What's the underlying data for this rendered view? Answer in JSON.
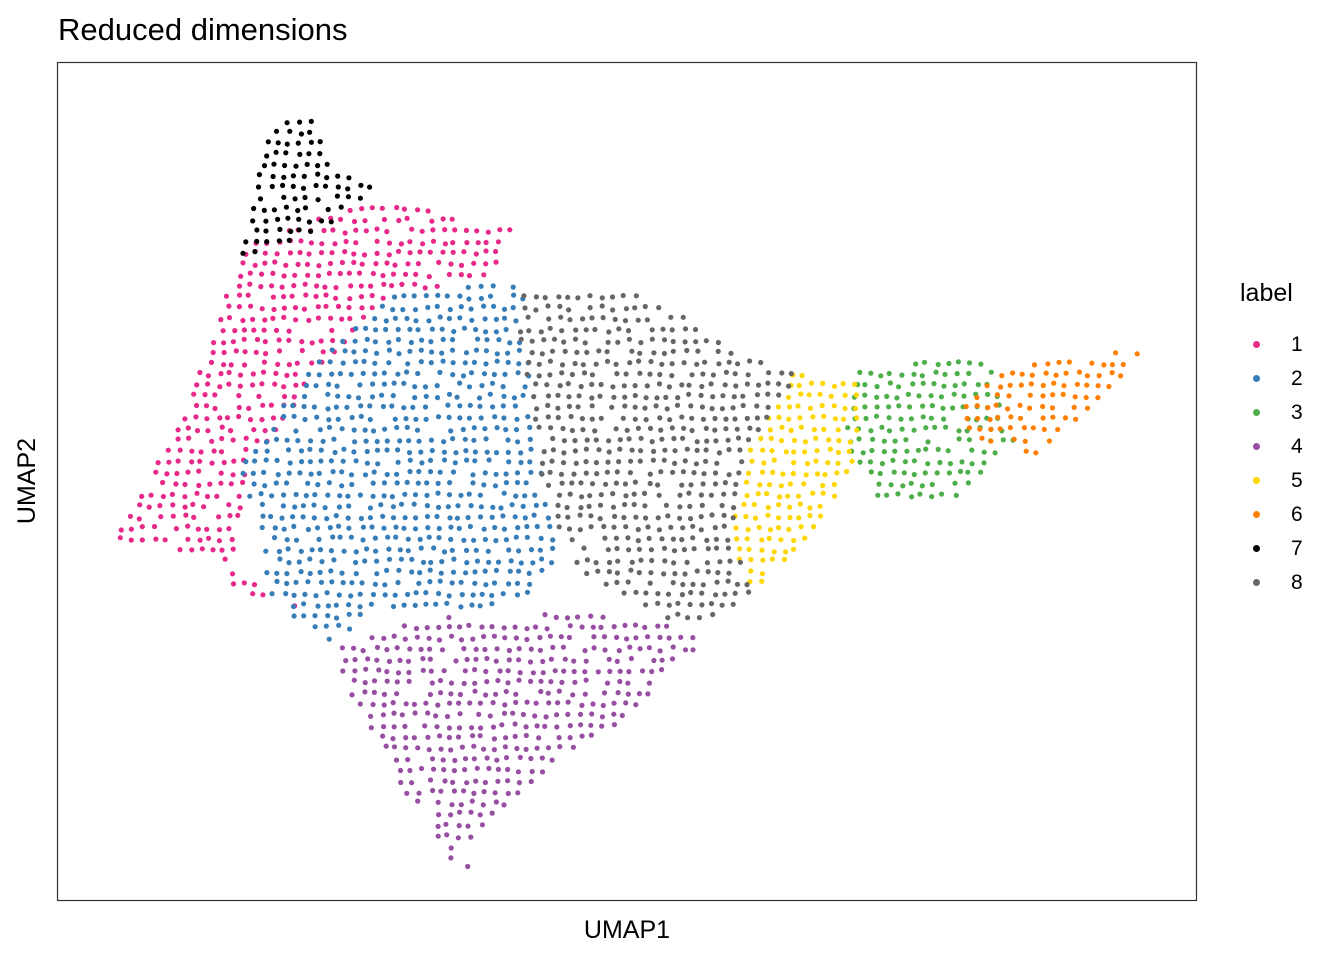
{
  "chart_data": {
    "type": "scatter",
    "title": "Reduced dimensions",
    "xlabel": "UMAP1",
    "ylabel": "UMAP2",
    "xlim": [
      0,
      1
    ],
    "ylim": [
      0,
      1
    ],
    "axis_ticks": false,
    "grid": false,
    "legend": {
      "title": "label",
      "position": "right"
    },
    "series": [
      {
        "name": "1",
        "color": "#e7298a",
        "outline": [
          [
            0.05,
            0.43
          ],
          [
            0.11,
            0.58
          ],
          [
            0.16,
            0.78
          ],
          [
            0.28,
            0.84
          ],
          [
            0.4,
            0.8
          ],
          [
            0.39,
            0.75
          ],
          [
            0.29,
            0.72
          ],
          [
            0.24,
            0.65
          ],
          [
            0.17,
            0.52
          ],
          [
            0.15,
            0.37
          ],
          [
            0.21,
            0.35
          ],
          [
            0.13,
            0.41
          ]
        ]
      },
      {
        "name": "2",
        "color": "#377eb8",
        "outline": [
          [
            0.16,
            0.52
          ],
          [
            0.23,
            0.65
          ],
          [
            0.29,
            0.72
          ],
          [
            0.39,
            0.74
          ],
          [
            0.41,
            0.73
          ],
          [
            0.42,
            0.55
          ],
          [
            0.44,
            0.4
          ],
          [
            0.39,
            0.34
          ],
          [
            0.29,
            0.35
          ],
          [
            0.24,
            0.31
          ],
          [
            0.19,
            0.35
          ]
        ]
      },
      {
        "name": "3",
        "color": "#4daf4a",
        "outline": [
          [
            0.7,
            0.64
          ],
          [
            0.74,
            0.64
          ],
          [
            0.78,
            0.65
          ],
          [
            0.82,
            0.64
          ],
          [
            0.84,
            0.55
          ],
          [
            0.79,
            0.48
          ],
          [
            0.75,
            0.48
          ],
          [
            0.72,
            0.48
          ],
          [
            0.69,
            0.55
          ]
        ]
      },
      {
        "name": "4",
        "color": "#984ea3",
        "outline": [
          [
            0.24,
            0.3
          ],
          [
            0.33,
            0.34
          ],
          [
            0.4,
            0.33
          ],
          [
            0.45,
            0.35
          ],
          [
            0.53,
            0.33
          ],
          [
            0.57,
            0.31
          ],
          [
            0.49,
            0.21
          ],
          [
            0.41,
            0.13
          ],
          [
            0.36,
            0.07
          ],
          [
            0.35,
            0.04
          ],
          [
            0.3,
            0.14
          ],
          [
            0.27,
            0.21
          ]
        ]
      },
      {
        "name": "5",
        "color": "#ffd700",
        "outline": [
          [
            0.6,
            0.52
          ],
          [
            0.63,
            0.59
          ],
          [
            0.64,
            0.63
          ],
          [
            0.7,
            0.62
          ],
          [
            0.71,
            0.57
          ],
          [
            0.69,
            0.49
          ],
          [
            0.65,
            0.42
          ],
          [
            0.61,
            0.37
          ],
          [
            0.59,
            0.43
          ]
        ]
      },
      {
        "name": "6",
        "color": "#ff7f00",
        "outline": [
          [
            0.79,
            0.58
          ],
          [
            0.83,
            0.64
          ],
          [
            0.91,
            0.65
          ],
          [
            0.96,
            0.66
          ],
          [
            0.91,
            0.59
          ],
          [
            0.86,
            0.53
          ],
          [
            0.8,
            0.55
          ]
        ]
      },
      {
        "name": "7",
        "color": "#000000",
        "outline": [
          [
            0.16,
            0.76
          ],
          [
            0.17,
            0.82
          ],
          [
            0.17,
            0.87
          ],
          [
            0.19,
            0.92
          ],
          [
            0.22,
            0.95
          ],
          [
            0.24,
            0.88
          ],
          [
            0.28,
            0.85
          ],
          [
            0.24,
            0.81
          ],
          [
            0.2,
            0.78
          ]
        ]
      },
      {
        "name": "8",
        "color": "#666666",
        "outline": [
          [
            0.4,
            0.73
          ],
          [
            0.47,
            0.73
          ],
          [
            0.52,
            0.72
          ],
          [
            0.56,
            0.69
          ],
          [
            0.6,
            0.65
          ],
          [
            0.65,
            0.63
          ],
          [
            0.61,
            0.54
          ],
          [
            0.59,
            0.44
          ],
          [
            0.61,
            0.37
          ],
          [
            0.57,
            0.32
          ],
          [
            0.53,
            0.34
          ],
          [
            0.45,
            0.4
          ],
          [
            0.42,
            0.53
          ]
        ]
      }
    ],
    "isolated_points": [
      [
        0.36,
        0.04
      ]
    ]
  }
}
